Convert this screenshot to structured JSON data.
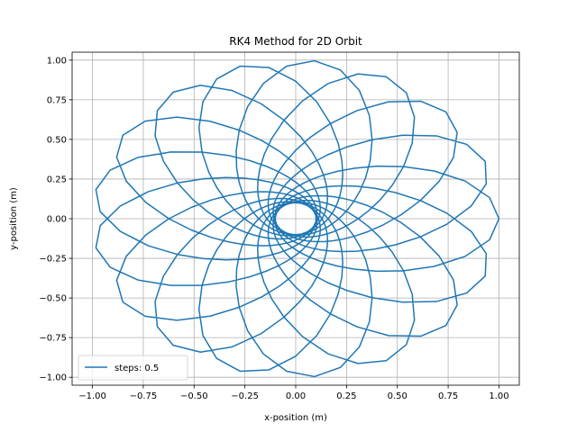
{
  "chart_data": {
    "type": "line",
    "title": "RK4 Method for 2D Orbit",
    "xlabel": "x-position (m)",
    "ylabel": "y-position (m)",
    "xlim": [
      -1.1,
      1.1
    ],
    "ylim": [
      -1.05,
      1.05
    ],
    "xticks": [
      -1.0,
      -0.75,
      -0.5,
      -0.25,
      0.0,
      0.25,
      0.5,
      0.75,
      1.0
    ],
    "yticks": [
      -1.0,
      -0.75,
      -0.5,
      -0.25,
      0.0,
      0.25,
      0.5,
      0.75,
      1.0
    ],
    "xtick_labels": [
      "−1.00",
      "−0.75",
      "−0.50",
      "−0.25",
      "0.00",
      "0.25",
      "0.50",
      "0.75",
      "1.00"
    ],
    "ytick_labels": [
      "−1.00",
      "−0.75",
      "−0.50",
      "−0.25",
      "0.00",
      "0.25",
      "0.50",
      "0.75",
      "1.00"
    ],
    "grid": true,
    "legend_position": "lower-left",
    "series": [
      {
        "name": "steps: 0.5",
        "color": "#1f77b4",
        "orbit": {
          "start_point": [
            1.0,
            0.0
          ],
          "apoapsis": 1.0,
          "periapsis": 0.1,
          "num_lobes": 18,
          "precession_per_lobe_deg": 20
        }
      }
    ]
  }
}
